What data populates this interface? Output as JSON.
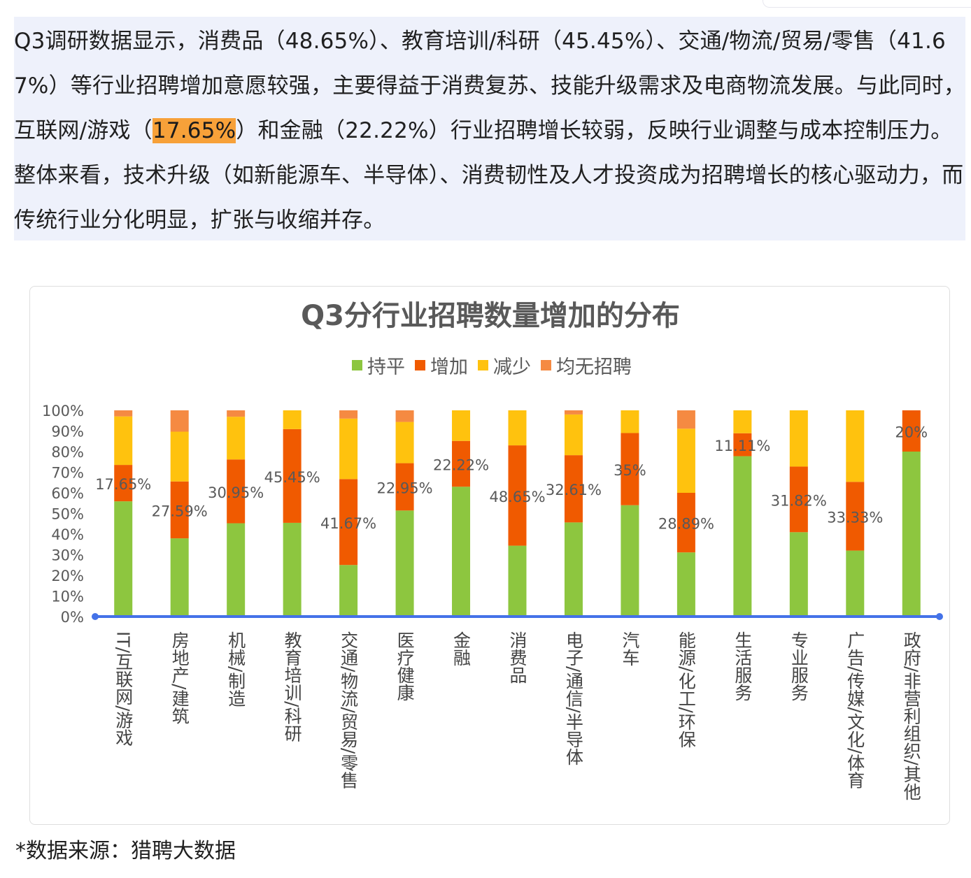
{
  "paragraph": {
    "part1": "Q3调研数据显示，消费品（48.65%）、教育培训/科研（45.45%）、交通/物流/贸易/零售（41.67%）等行业招聘增加意愿较强，主要得益于消费复苏、技能升级需求及电商物流发展。与此同时，互联网/游戏（",
    "highlight": "17.65%",
    "part2": "）和金融（22.22%）行业招聘增长较弱，反映行业调整与成本控制压力。整体来看，技术升级（如新能源车、半导体）、消费韧性及人才投资成为招聘增长的核心驱动力，而传统行业分化明显，扩张与收缩并存。"
  },
  "colors": {
    "flat": "#8dc63f",
    "increase": "#f05a00",
    "decrease": "#ffc20e",
    "none": "#f58a42",
    "axis": "#4472e8",
    "title": "#595959",
    "label": "#595959",
    "highlight": "#f7a139",
    "panel": "#eef1fb"
  },
  "chart_data": {
    "type": "bar",
    "stacked": true,
    "title": "Q3分行业招聘数量增加的分布",
    "legend": [
      "持平",
      "增加",
      "减少",
      "均无招聘"
    ],
    "legend_position": "top",
    "ylim": [
      0,
      100
    ],
    "yticks": [
      "0%",
      "10%",
      "20%",
      "30%",
      "40%",
      "50%",
      "60%",
      "70%",
      "80%",
      "90%",
      "100%"
    ],
    "categories": [
      "IT/互联网/游戏",
      "房地产/建筑",
      "机械/制造",
      "教育培训/科研",
      "交通/物流/贸易/零售",
      "医疗健康",
      "金融",
      "消费品",
      "电子/通信/半导体",
      "汽车",
      "能源/化工/环保",
      "生活服务",
      "专业服务",
      "广告/传媒/文化/体育",
      "政府/非营利组织/其他"
    ],
    "series": [
      {
        "name": "持平",
        "values": [
          55.88,
          37.93,
          45.24,
          45.45,
          25.0,
          51.43,
          62.96,
          34.37,
          45.65,
          54.0,
          31.11,
          77.78,
          40.91,
          32.0,
          80.0
        ]
      },
      {
        "name": "增加",
        "values": [
          17.65,
          27.59,
          30.95,
          45.45,
          41.67,
          22.95,
          22.22,
          48.65,
          32.61,
          35.0,
          28.89,
          11.11,
          31.82,
          33.33,
          20.0
        ]
      },
      {
        "name": "减少",
        "values": [
          23.53,
          24.14,
          20.71,
          9.1,
          29.33,
          20.0,
          14.82,
          16.98,
          19.74,
          11.0,
          31.11,
          11.11,
          27.27,
          34.67,
          0.0
        ]
      },
      {
        "name": "均无招聘",
        "values": [
          2.94,
          10.34,
          3.1,
          0.0,
          4.0,
          5.62,
          0.0,
          0.0,
          2.0,
          0.0,
          8.89,
          0.0,
          0.0,
          0.0,
          0.0
        ]
      }
    ],
    "data_labels": [
      "17.65%",
      "27.59%",
      "30.95%",
      "45.45%",
      "41.67%",
      "22.95%",
      "22.22%",
      "48.65%",
      "32.61%",
      "35%",
      "28.89%",
      "11.11%",
      "31.82%",
      "33.33%",
      "20%"
    ]
  },
  "source": "*数据来源：猎聘大数据"
}
